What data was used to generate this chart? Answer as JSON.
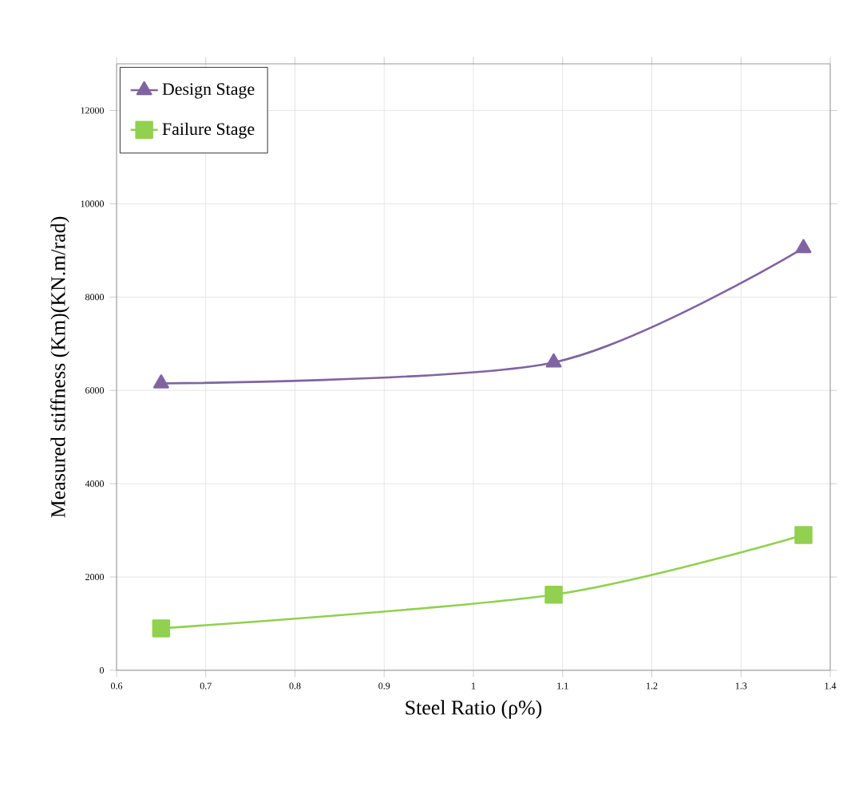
{
  "chart_data": {
    "type": "line",
    "xlabel": "Steel Ratio (ρ%)",
    "ylabel": "Measured stiffness (Km)(KN.m/rad)",
    "xlim": [
      0.6,
      1.4
    ],
    "ylim": [
      0,
      13000
    ],
    "xticks": [
      0.6,
      0.7,
      0.8,
      0.9,
      1,
      1.1,
      1.2,
      1.3,
      1.4
    ],
    "yticks": [
      0,
      2000,
      4000,
      6000,
      8000,
      10000,
      12000
    ],
    "x": [
      0.65,
      1.09,
      1.37
    ],
    "series": [
      {
        "name": "Design Stage",
        "color": "#8064a2",
        "marker": "triangle",
        "values": [
          6150,
          6600,
          9050
        ]
      },
      {
        "name": "Failure Stage",
        "color": "#92d050",
        "marker": "square",
        "values": [
          900,
          1620,
          2900
        ]
      }
    ],
    "grid": true,
    "legend": "top left"
  }
}
